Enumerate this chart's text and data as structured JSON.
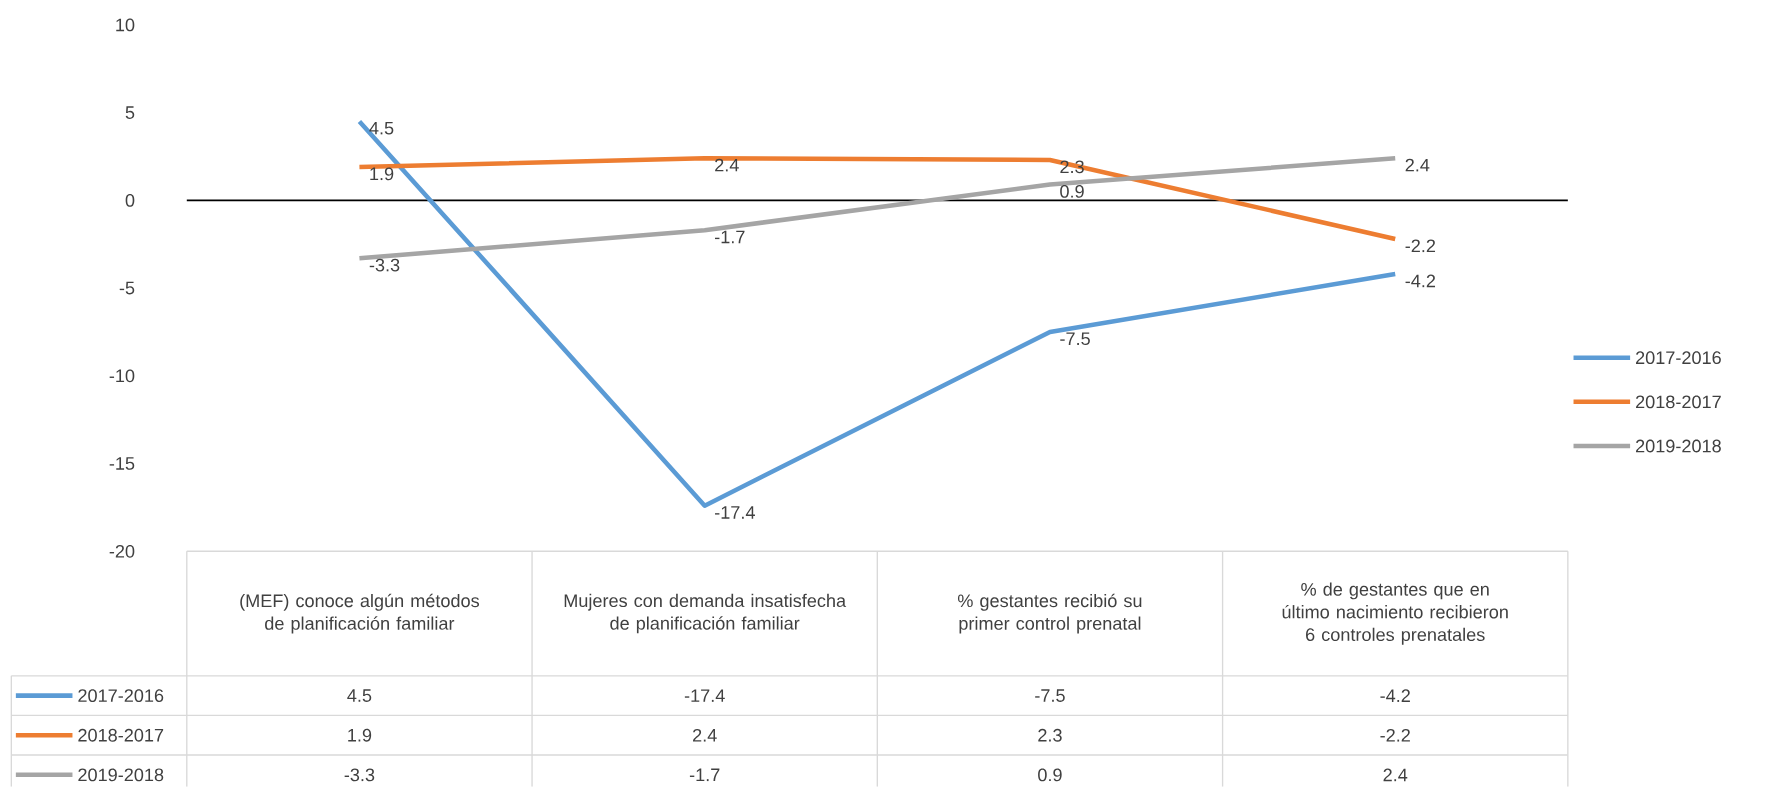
{
  "chart_data": {
    "type": "line",
    "categories": [
      "(MEF) conoce algún métodos de planificación familiar",
      "Mujeres con demanda insatisfecha de planificación familiar",
      "% gestantes recibió su primer control prenatal",
      "% de gestantes que en último nacimiento recibieron 6 controles prenatales"
    ],
    "series": [
      {
        "name": "2017-2016",
        "color": "#5b9bd5",
        "values": [
          4.5,
          -17.4,
          -7.5,
          -4.2
        ],
        "value_labels": [
          "4.5",
          "-17.4",
          "-7.5",
          "-4.2"
        ]
      },
      {
        "name": "2018-2017",
        "color": "#ed7d31",
        "values": [
          1.9,
          2.4,
          2.3,
          -2.2
        ],
        "value_labels": [
          "1.9",
          "2.4",
          "2.3",
          "-2.2"
        ]
      },
      {
        "name": "2019-2018",
        "color": "#a5a5a5",
        "values": [
          -3.3,
          -1.7,
          0.9,
          2.4
        ],
        "value_labels": [
          "-3.3",
          "-1.7",
          "0.9",
          "2.4"
        ]
      }
    ],
    "ylim": [
      -20,
      10
    ],
    "yticks": [
      -20,
      -15,
      -10,
      -5,
      0,
      5,
      10
    ],
    "legend": "right",
    "marker": "none",
    "line_style": "solid"
  }
}
